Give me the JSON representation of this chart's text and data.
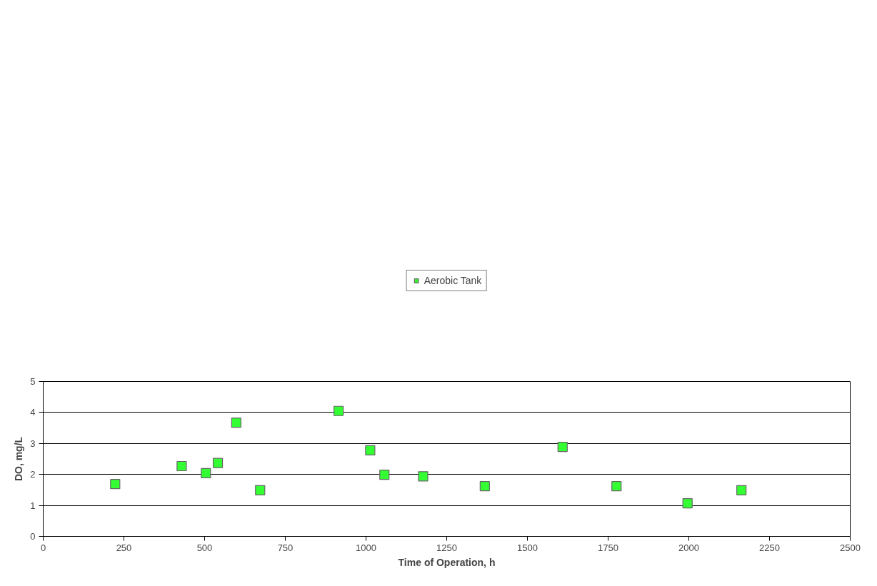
{
  "chart_data": {
    "type": "scatter",
    "xlabel": "Time of Operation, h",
    "ylabel": "DO, mg/L",
    "x": [
      223,
      429,
      504,
      541,
      598,
      672,
      915,
      1013,
      1057,
      1177,
      1368,
      1609,
      1776,
      1996,
      2163
    ],
    "series": [
      {
        "name": "Aerobic Tank",
        "color": "#33ff33",
        "values": [
          1.69,
          2.27,
          2.04,
          2.37,
          3.67,
          1.49,
          4.05,
          2.78,
          1.99,
          1.94,
          1.62,
          2.89,
          1.62,
          1.07,
          1.49
        ]
      }
    ],
    "xlim": [
      0,
      2500
    ],
    "xticks": [
      0,
      250,
      500,
      750,
      1000,
      1250,
      1500,
      1750,
      2000,
      2250,
      2500
    ],
    "ylim": [
      0,
      5
    ],
    "yticks": [
      0,
      1,
      2,
      3,
      4,
      5
    ],
    "grid": "y",
    "legend": "top",
    "marker": "square"
  }
}
